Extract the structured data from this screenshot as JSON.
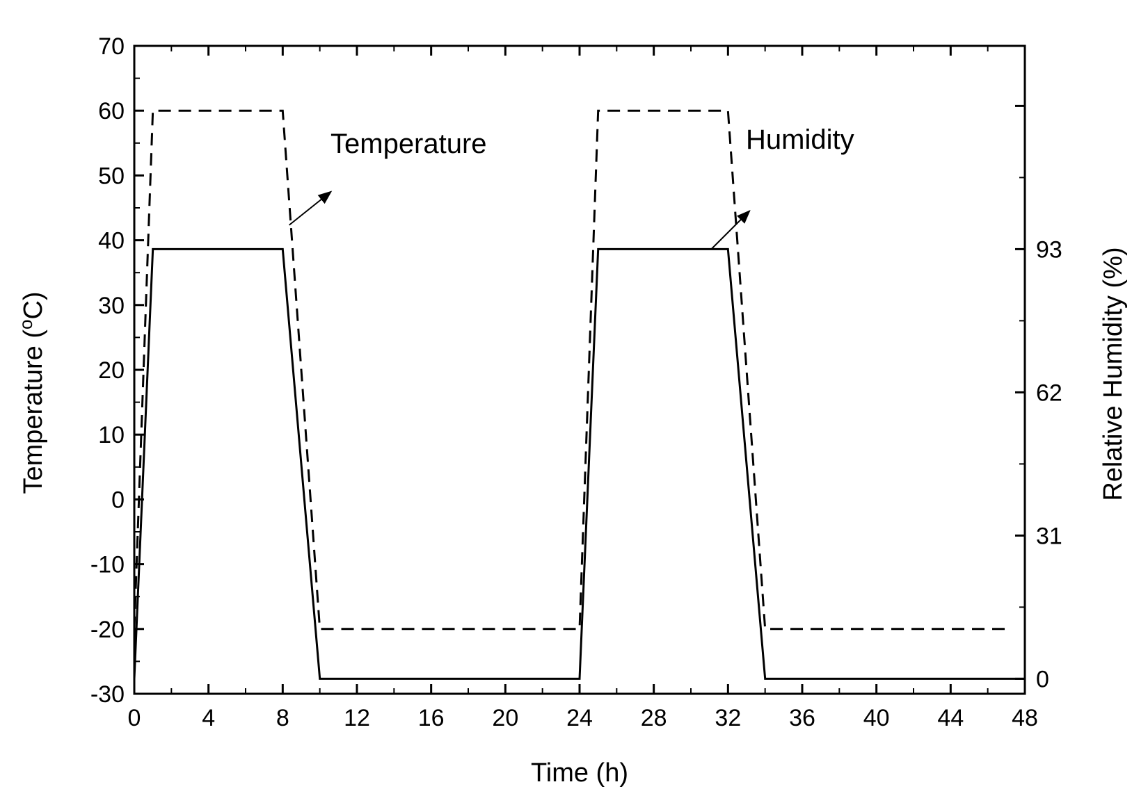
{
  "chart_data": {
    "type": "line",
    "title": "",
    "xlabel": "Time (h)",
    "ylabel_left": "Temperature (°C)",
    "ylabel_left_parts": {
      "before": "Temperature (",
      "sup": "o",
      "after": "C)"
    },
    "ylabel_right": "Relative Humidity (%)",
    "xlim": [
      0,
      48
    ],
    "ylim_left": [
      -30,
      70
    ],
    "ylim_right": [
      -3.25,
      137
    ],
    "x_ticks": [
      0,
      4,
      8,
      12,
      16,
      20,
      24,
      28,
      32,
      36,
      40,
      44,
      48
    ],
    "x_tick_labels": [
      "0",
      "4",
      "8",
      "12",
      "16",
      "20",
      "24",
      "28",
      "32",
      "36",
      "40",
      "44",
      "48"
    ],
    "y_left_ticks": [
      -30,
      -20,
      -10,
      0,
      10,
      20,
      30,
      40,
      50,
      60,
      70
    ],
    "y_left_tick_labels": [
      "-30",
      "-20",
      "-10",
      "0",
      "10",
      "20",
      "30",
      "40",
      "50",
      "60",
      "70"
    ],
    "y_right_ticks": [
      0,
      31,
      62,
      93
    ],
    "y_right_tick_labels": [
      "0",
      "31",
      "62",
      "93"
    ],
    "grid": false,
    "series": [
      {
        "name": "Temperature",
        "axis": "left",
        "style": "dashed",
        "x": [
          0,
          1,
          8,
          10,
          24,
          25,
          32,
          34,
          47
        ],
        "y": [
          -20,
          60,
          60,
          -20,
          -20,
          60,
          60,
          -20,
          -20
        ]
      },
      {
        "name": "Humidity",
        "axis": "right",
        "style": "solid",
        "x": [
          0,
          1,
          8,
          10,
          24,
          25,
          32,
          34,
          48
        ],
        "y": [
          0,
          93,
          93,
          0,
          0,
          93,
          93,
          0,
          0
        ]
      }
    ],
    "annotations": [
      {
        "text": "Temperature",
        "points_to": "Temperature",
        "at_x": 8.2
      },
      {
        "text": "Humidity",
        "points_to": "Humidity",
        "at_x": 31.1
      }
    ]
  }
}
